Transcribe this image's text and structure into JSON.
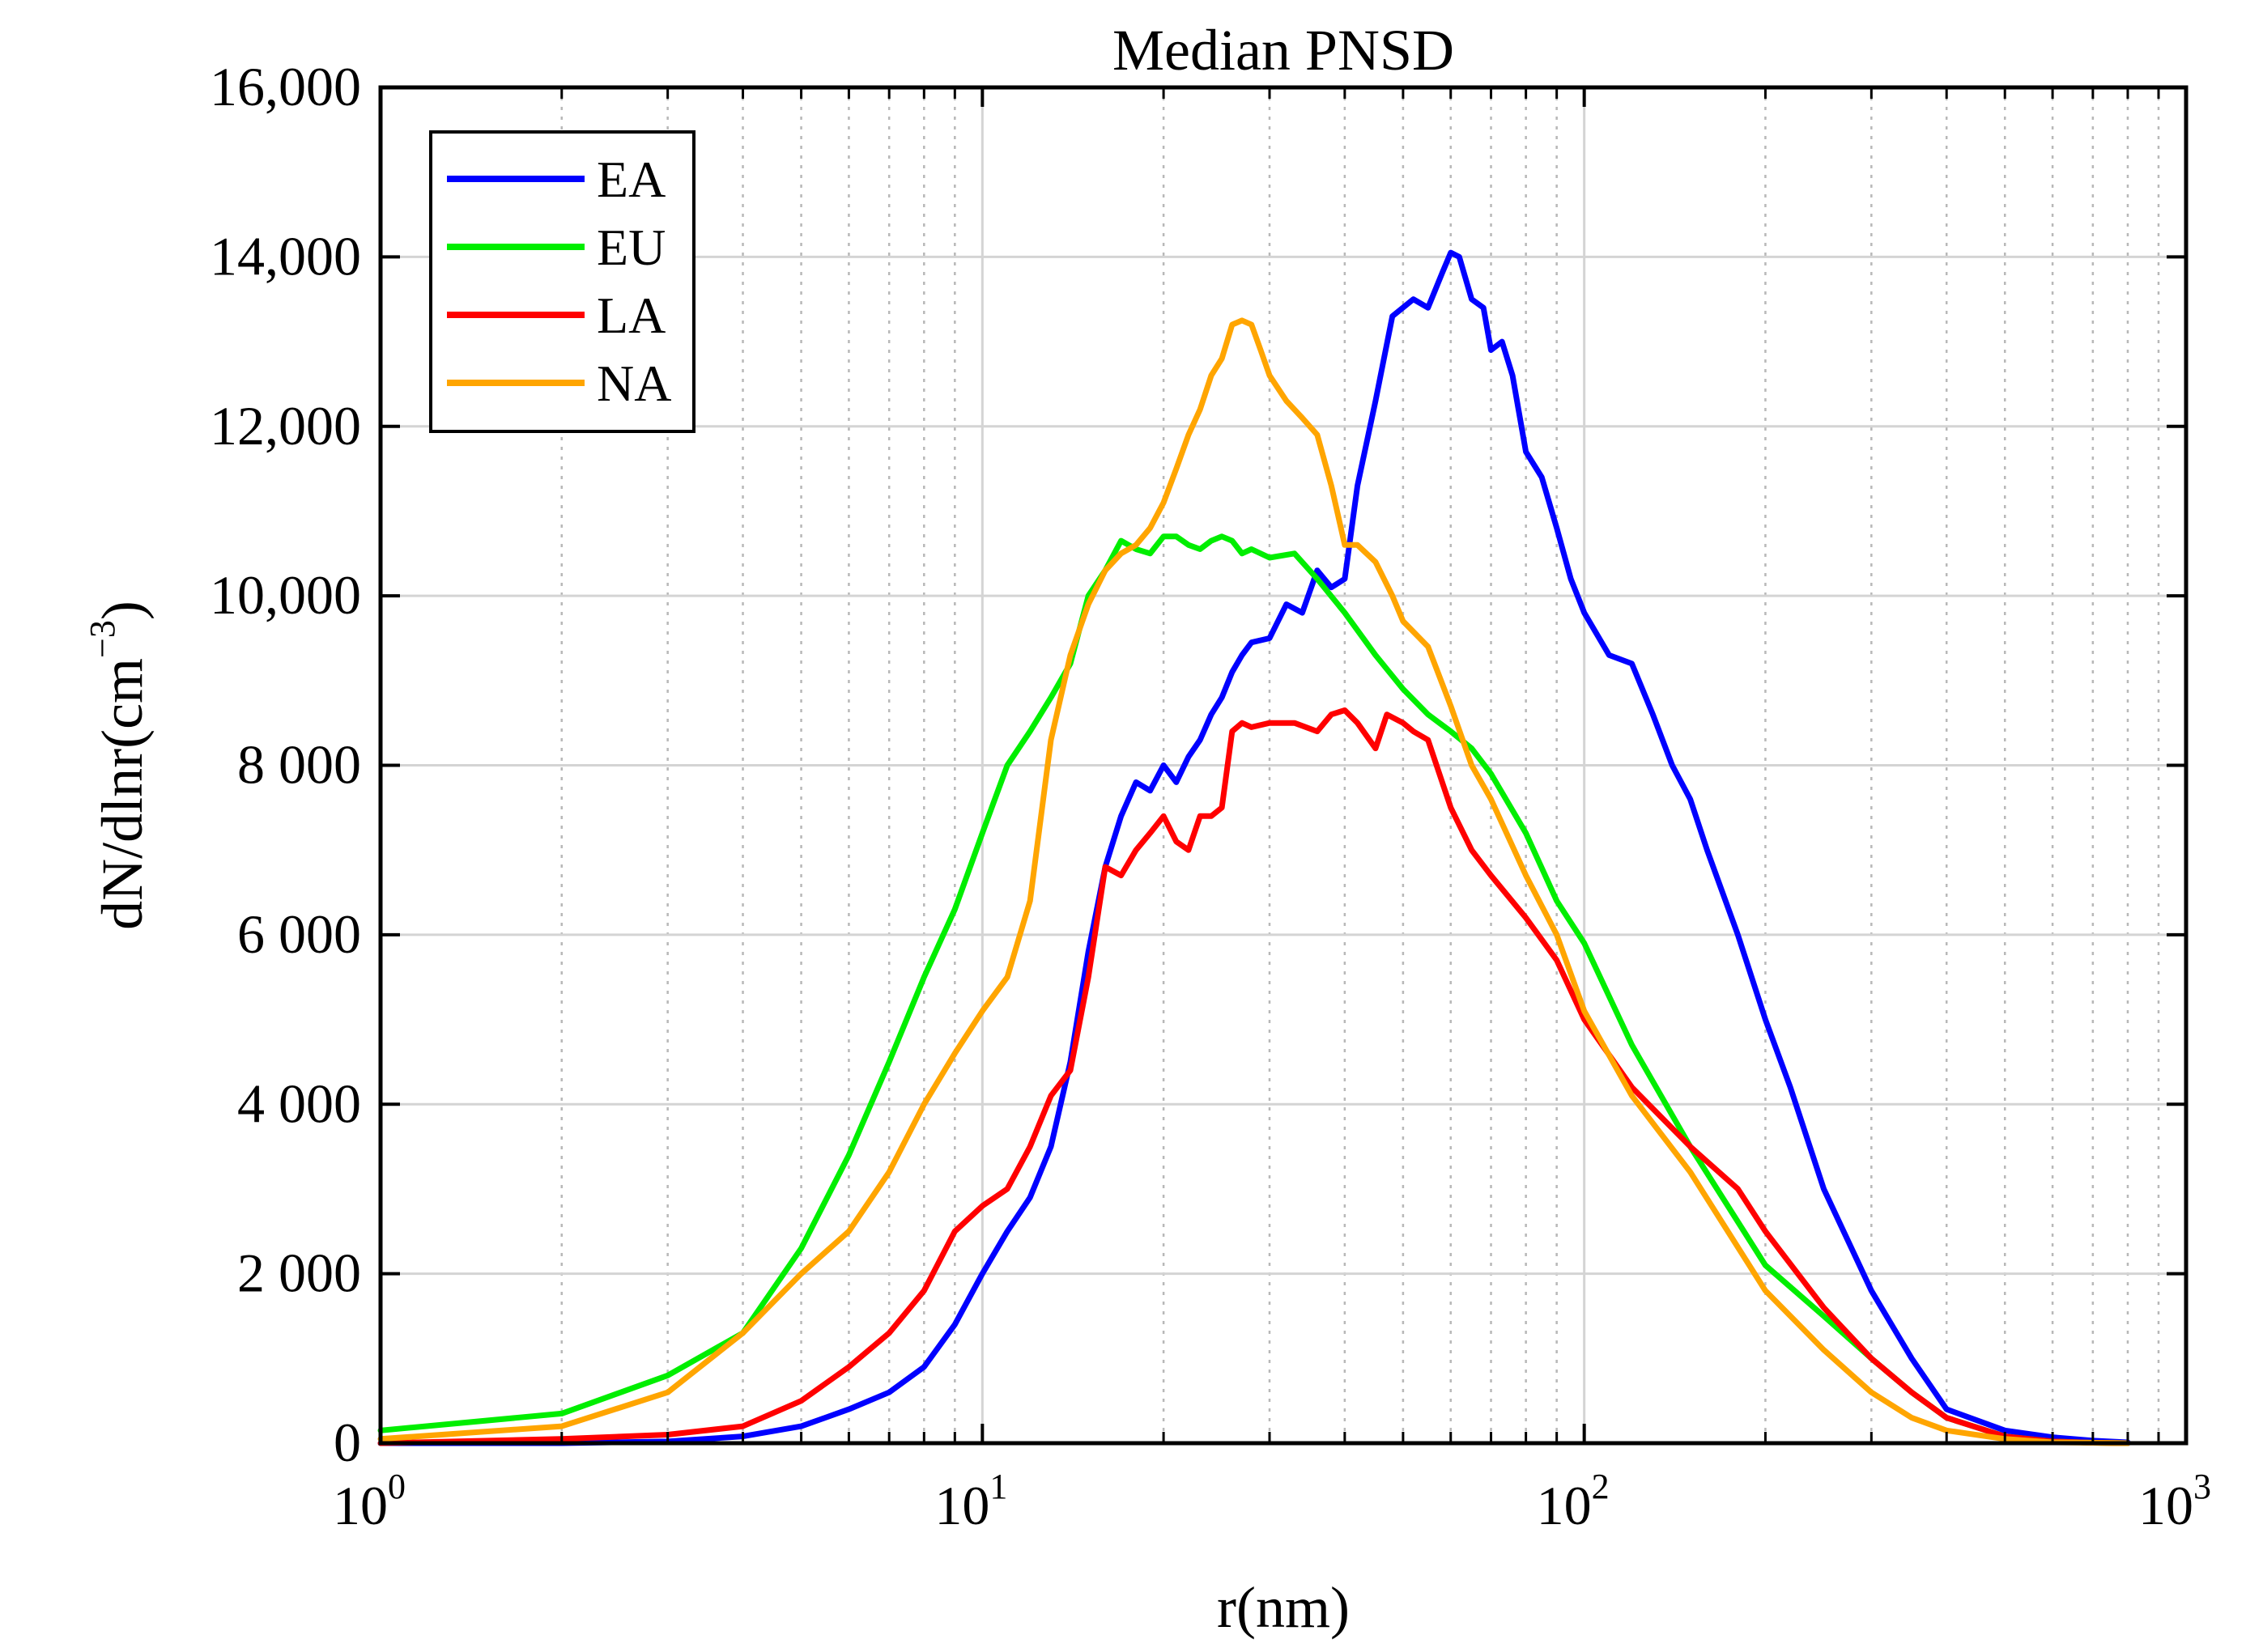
{
  "chart_data": {
    "type": "line",
    "title": "Median PNSD",
    "xlabel": "r(nm)",
    "ylabel": "dN/dlnr(cm",
    "ylabel_sup": "−3",
    "ylabel_close": ")",
    "xscale": "log",
    "xlim": [
      1,
      1000
    ],
    "ylim": [
      0,
      16000
    ],
    "grid": true,
    "legend_position": "top-left",
    "x_ticks": [
      {
        "value": 1,
        "base": "10",
        "exp": "0"
      },
      {
        "value": 10,
        "base": "10",
        "exp": "1"
      },
      {
        "value": 100,
        "base": "10",
        "exp": "2"
      },
      {
        "value": 1000,
        "base": "10",
        "exp": "3"
      }
    ],
    "y_ticks": [
      {
        "value": 0,
        "label": "0"
      },
      {
        "value": 2000,
        "label": "2 000"
      },
      {
        "value": 4000,
        "label": "4 000"
      },
      {
        "value": 6000,
        "label": "6 000"
      },
      {
        "value": 8000,
        "label": "8 000"
      },
      {
        "value": 10000,
        "label": "10,000"
      },
      {
        "value": 12000,
        "label": "12,000"
      },
      {
        "value": 14000,
        "label": "14,000"
      },
      {
        "value": 16000,
        "label": "16,000"
      }
    ],
    "series": [
      {
        "name": "EA",
        "color": "#0000ff",
        "x": [
          1,
          2,
          3,
          4,
          5,
          6,
          7,
          8,
          9,
          10,
          11,
          12,
          13,
          14,
          15,
          16,
          17,
          18,
          19,
          20,
          21,
          22,
          23,
          24,
          25,
          26,
          27,
          28,
          30,
          32,
          34,
          36,
          38,
          40,
          42,
          45,
          48,
          52,
          55,
          58,
          60,
          62,
          65,
          68,
          70,
          73,
          76,
          80,
          85,
          90,
          95,
          100,
          110,
          120,
          130,
          140,
          150,
          160,
          180,
          200,
          220,
          250,
          300,
          350,
          400,
          500,
          600,
          700,
          800
        ],
        "values": [
          0,
          0,
          20,
          80,
          200,
          400,
          600,
          900,
          1400,
          2000,
          2500,
          2900,
          3500,
          4500,
          5800,
          6800,
          7400,
          7800,
          7700,
          8000,
          7800,
          8100,
          8300,
          8600,
          8800,
          9100,
          9300,
          9450,
          9500,
          9900,
          9800,
          10300,
          10100,
          10200,
          11300,
          12300,
          13300,
          13500,
          13400,
          13800,
          14050,
          14000,
          13500,
          13400,
          12900,
          13000,
          12600,
          11700,
          11400,
          10800,
          10200,
          9800,
          9300,
          9200,
          8600,
          8000,
          7600,
          7000,
          6000,
          5000,
          4200,
          3000,
          1800,
          1000,
          400,
          150,
          70,
          30,
          10
        ]
      },
      {
        "name": "EU",
        "color": "#00ee00",
        "x": [
          1,
          2,
          3,
          4,
          5,
          6,
          7,
          8,
          9,
          10,
          11,
          12,
          13,
          14,
          15,
          16,
          17,
          18,
          19,
          20,
          21,
          22,
          23,
          24,
          25,
          26,
          27,
          28,
          30,
          33,
          36,
          40,
          45,
          50,
          55,
          60,
          65,
          70,
          80,
          90,
          100,
          120,
          150,
          200,
          250,
          300,
          350,
          400,
          500,
          600,
          700,
          800
        ],
        "values": [
          150,
          350,
          800,
          1300,
          2300,
          3400,
          4500,
          5500,
          6300,
          7200,
          8000,
          8400,
          8800,
          9200,
          10000,
          10300,
          10650,
          10550,
          10500,
          10700,
          10700,
          10600,
          10550,
          10650,
          10700,
          10650,
          10500,
          10550,
          10450,
          10500,
          10200,
          9800,
          9300,
          8900,
          8600,
          8400,
          8200,
          7900,
          7200,
          6400,
          5900,
          4700,
          3500,
          2100,
          1500,
          1000,
          600,
          300,
          80,
          20,
          5,
          0
        ]
      },
      {
        "name": "LA",
        "color": "#ff0000",
        "x": [
          1,
          2,
          3,
          4,
          5,
          6,
          7,
          8,
          9,
          10,
          11,
          12,
          13,
          14,
          15,
          16,
          17,
          18,
          19,
          20,
          21,
          22,
          23,
          24,
          25,
          26,
          27,
          28,
          30,
          33,
          36,
          38,
          40,
          42,
          45,
          47,
          50,
          52,
          55,
          60,
          65,
          70,
          80,
          90,
          100,
          120,
          150,
          180,
          200,
          250,
          300,
          350,
          400,
          500,
          600,
          700,
          800
        ],
        "values": [
          0,
          50,
          100,
          200,
          500,
          900,
          1300,
          1800,
          2500,
          2800,
          3000,
          3500,
          4100,
          4400,
          5500,
          6800,
          6700,
          7000,
          7200,
          7400,
          7100,
          7000,
          7400,
          7400,
          7500,
          8400,
          8500,
          8450,
          8500,
          8500,
          8400,
          8600,
          8650,
          8500,
          8200,
          8600,
          8500,
          8400,
          8300,
          7500,
          7000,
          6700,
          6200,
          5700,
          5000,
          4200,
          3500,
          3000,
          2500,
          1600,
          1000,
          600,
          300,
          80,
          20,
          5,
          0
        ]
      },
      {
        "name": "NA",
        "color": "#ffa500",
        "x": [
          1,
          2,
          3,
          4,
          5,
          6,
          7,
          8,
          9,
          10,
          11,
          12,
          13,
          14,
          15,
          16,
          17,
          18,
          19,
          20,
          21,
          22,
          23,
          24,
          25,
          26,
          27,
          28,
          29,
          30,
          32,
          34,
          36,
          38,
          40,
          42,
          45,
          48,
          50,
          55,
          60,
          65,
          70,
          80,
          90,
          100,
          120,
          150,
          200,
          250,
          300,
          350,
          400,
          500,
          600,
          700,
          800
        ],
        "values": [
          50,
          200,
          600,
          1300,
          2000,
          2500,
          3200,
          4000,
          4600,
          5100,
          5500,
          6400,
          8300,
          9300,
          9900,
          10300,
          10500,
          10600,
          10800,
          11100,
          11500,
          11900,
          12200,
          12600,
          12800,
          13200,
          13250,
          13200,
          12900,
          12600,
          12300,
          12100,
          11900,
          11300,
          10600,
          10600,
          10400,
          10000,
          9700,
          9400,
          8700,
          8000,
          7600,
          6700,
          6000,
          5100,
          4100,
          3200,
          1800,
          1100,
          600,
          300,
          150,
          50,
          10,
          5,
          0
        ]
      }
    ]
  }
}
